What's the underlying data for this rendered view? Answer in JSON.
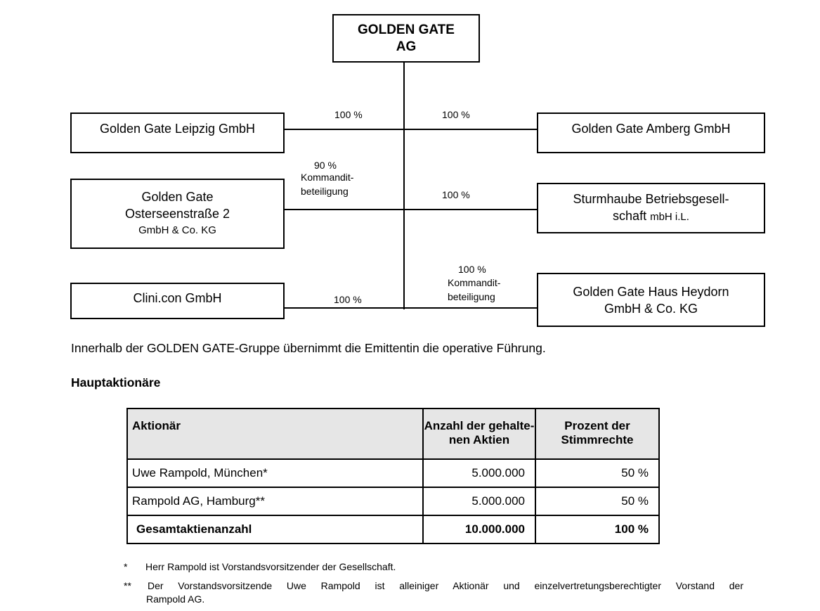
{
  "chart": {
    "parent": {
      "line1": "GOLDEN GATE",
      "line2": "AG"
    },
    "subsidiaries": [
      {
        "name": "Golden Gate Leipzig GmbH",
        "share": "100 %"
      },
      {
        "name": "Golden Gate Amberg GmbH",
        "share": "100 %"
      },
      {
        "line1": "Golden Gate",
        "line2": "Osterseenstraße 2",
        "line3": "GmbH & Co. KG",
        "share": "90 %",
        "share_note1": "Kommandit-",
        "share_note2": "beteiligung"
      },
      {
        "line1": "Sturmhaube Betriebsgesell-",
        "line2a": "schaft ",
        "line2b": "mbH i.L.",
        "share": "100 %"
      },
      {
        "name": "Clini.con GmbH",
        "share": "100 %"
      },
      {
        "line1": "Golden Gate Haus Heydorn",
        "line2": "GmbH & Co. KG",
        "share": "100 %",
        "share_note1": "Kommandit-",
        "share_note2": "beteiligung"
      }
    ]
  },
  "paragraph": "Innerhalb der GOLDEN GATE-Gruppe übernimmt die Emittentin die operative Führung.",
  "heading": "Hauptaktionäre",
  "table": {
    "headers": [
      "Aktionär",
      "Anzahl der gehalte-",
      "nen Aktien",
      "Prozent der",
      "Stimmrechte"
    ],
    "rows": [
      [
        "Uwe Rampold, München*",
        "5.000.000",
        "50 %"
      ],
      [
        "Rampold AG, Hamburg**",
        "5.000.000",
        "50 %"
      ],
      [
        "Gesamtaktienanzahl",
        "10.000.000",
        "100 %"
      ]
    ]
  },
  "footnotes": [
    {
      "mark": "*",
      "text": "Herr Rampold ist Vorstandsvorsitzender der Gesellschaft."
    },
    {
      "mark": "**",
      "text": "Der Vorstandsvorsitzende Uwe Rampold ist alleiniger Aktionär und einzelvertretungsberechtigter Vorstand der",
      "text2": "Rampold AG."
    }
  ]
}
